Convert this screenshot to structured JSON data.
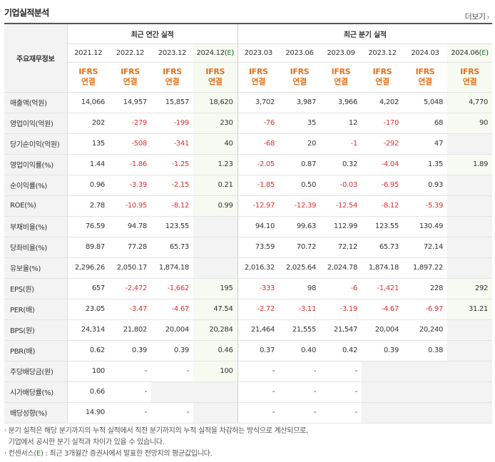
{
  "title": "기업실적분석",
  "more_label": "더보기",
  "corner_label": "주요재무정보",
  "groups": {
    "annual": "최근 연간 실적",
    "quarter": "최근 분기 실적"
  },
  "periods": [
    {
      "label": "2021.12",
      "est": false
    },
    {
      "label": "2022.12",
      "est": false
    },
    {
      "label": "2023.12",
      "est": false
    },
    {
      "label": "2024.12(E)",
      "est": true
    },
    {
      "label": "2023.03",
      "est": false
    },
    {
      "label": "2023.06",
      "est": false
    },
    {
      "label": "2023.09",
      "est": false
    },
    {
      "label": "2023.12",
      "est": false
    },
    {
      "label": "2024.03",
      "est": false
    },
    {
      "label": "2024.06(E)",
      "est": true
    }
  ],
  "ifrs": {
    "line1": "IFRS",
    "line2": "연결"
  },
  "rows": [
    {
      "label": "매출액(억원)",
      "group": 1,
      "values": [
        "14,066",
        "14,957",
        "15,857",
        "18,620",
        "3,702",
        "3,987",
        "3,966",
        "4,202",
        "5,048",
        "4,770"
      ]
    },
    {
      "label": "영업이익(억원)",
      "group": 1,
      "values": [
        "202",
        "-279",
        "-199",
        "230",
        "-76",
        "35",
        "12",
        "-170",
        "68",
        "90"
      ]
    },
    {
      "label": "당기순이익(억원)",
      "group": 1,
      "values": [
        "135",
        "-508",
        "-341",
        "40",
        "-68",
        "20",
        "-1",
        "-292",
        "47",
        ""
      ]
    },
    {
      "label": "영업이익률(%)",
      "group": 2,
      "values": [
        "1.44",
        "-1.86",
        "-1.25",
        "1.23",
        "-2.05",
        "0.87",
        "0.32",
        "-4.04",
        "1.35",
        "1.89"
      ]
    },
    {
      "label": "순이익률(%)",
      "group": 2,
      "values": [
        "0.96",
        "-3.39",
        "-2.15",
        "0.21",
        "-1.85",
        "0.50",
        "-0.03",
        "-6.95",
        "0.93",
        ""
      ]
    },
    {
      "label": "ROE(%)",
      "group": 2,
      "values": [
        "2.78",
        "-10.95",
        "-8.12",
        "0.99",
        "-12.97",
        "-12.39",
        "-12.54",
        "-8.12",
        "-5.39",
        ""
      ]
    },
    {
      "label": "부채비율(%)",
      "group": 3,
      "values": [
        "76.59",
        "94.78",
        "123.55",
        "",
        "94.10",
        "99.63",
        "112.99",
        "123.55",
        "130.49",
        ""
      ]
    },
    {
      "label": "당좌비율(%)",
      "group": 3,
      "values": [
        "89.87",
        "77.28",
        "65.73",
        "",
        "73.59",
        "70.72",
        "72.12",
        "65.73",
        "72.14",
        ""
      ]
    },
    {
      "label": "유보율(%)",
      "group": 3,
      "values": [
        "2,296.26",
        "2,050.17",
        "1,874.18",
        "",
        "2,016.32",
        "2,025.64",
        "2,024.78",
        "1,874.18",
        "1,897.22",
        ""
      ]
    },
    {
      "label": "EPS(원)",
      "group": 4,
      "values": [
        "657",
        "-2,472",
        "-1,662",
        "195",
        "-333",
        "98",
        "-6",
        "-1,421",
        "228",
        "292"
      ]
    },
    {
      "label": "PER(배)",
      "group": 4,
      "values": [
        "23.05",
        "-3.47",
        "-4.67",
        "47.54",
        "-2.72",
        "-3.11",
        "-3.19",
        "-4.67",
        "-6.97",
        "31.21"
      ]
    },
    {
      "label": "BPS(원)",
      "group": 4,
      "values": [
        "24,314",
        "21,802",
        "20,004",
        "20,284",
        "21,464",
        "21,555",
        "21,547",
        "20,004",
        "20,240",
        ""
      ]
    },
    {
      "label": "PBR(배)",
      "group": 4,
      "values": [
        "0.62",
        "0.39",
        "0.39",
        "0.46",
        "0.37",
        "0.40",
        "0.42",
        "0.39",
        "0.38",
        ""
      ]
    },
    {
      "label": "주당배당금(원)",
      "group": 5,
      "values": [
        "100",
        "-",
        "-",
        "100",
        "-",
        "-",
        "-",
        "",
        "",
        ""
      ]
    },
    {
      "label": "시가배당률(%)",
      "group": 5,
      "values": [
        "0.66",
        "-",
        "",
        "",
        "-",
        "-",
        "-",
        "",
        "",
        ""
      ]
    },
    {
      "label": "배당성향(%)",
      "group": 5,
      "values": [
        "14.90",
        "-",
        "-",
        "",
        "-",
        "-",
        "-",
        "",
        "",
        ""
      ]
    }
  ],
  "notes": {
    "line1": "· 분기 실적은 해당 분기까지의 누적 실적에서 직전 분기까지의 누적 실적을 차감하는 방식으로 계산되므로,",
    "line2": "  기업에서 공시한 분기 실적과 차이가 있을 수 있습니다.",
    "line3_a": "· 컨센서스(",
    "line3_e": "E",
    "line3_b": ") : 최근 3개월간 증권사에서 발표한 전망치의 평균값입니다."
  }
}
